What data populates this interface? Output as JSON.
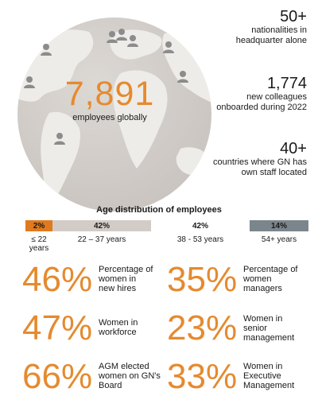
{
  "globe": {
    "number": "7,891",
    "label": "employees globally"
  },
  "stats": [
    {
      "number": "50+",
      "text": [
        "nationalities in",
        "headquarter alone"
      ]
    },
    {
      "number": "1,774",
      "text": [
        "new colleagues",
        "onboarded during 2022"
      ]
    },
    {
      "number": "40+",
      "text": [
        "countries where GN has",
        "own staff located"
      ]
    }
  ],
  "age_distribution": {
    "title": "Age distribution of employees",
    "groups": [
      {
        "percent": "2%",
        "range": "≤ 22 years",
        "color": "#e07a1f"
      },
      {
        "percent": "42%",
        "range": "22 – 37 years",
        "color": "#d3ccc6"
      },
      {
        "percent": "42%",
        "range": "38 - 53 years",
        "color": "#ffffff"
      },
      {
        "percent": "14%",
        "range": "54+ years",
        "color": "#7b858c"
      }
    ]
  },
  "percentages": [
    {
      "value": "46%",
      "label": [
        "Percentage of",
        "women in",
        "new hires"
      ]
    },
    {
      "value": "35%",
      "label": [
        "Percentage of",
        "women",
        "managers"
      ]
    },
    {
      "value": "47%",
      "label": [
        "Women in",
        "workforce"
      ]
    },
    {
      "value": "23%",
      "label": [
        "Women in",
        "senior",
        "management"
      ]
    },
    {
      "value": "66%",
      "label": [
        "AGM elected",
        "women on GN's",
        "Board"
      ]
    },
    {
      "value": "33%",
      "label": [
        "Women in",
        "Executive",
        "Management"
      ]
    }
  ],
  "colors": {
    "accent": "#e58a2f",
    "globe": "#d8d3cf",
    "land": "#efedea",
    "person_icon": "#8a8a8a"
  }
}
